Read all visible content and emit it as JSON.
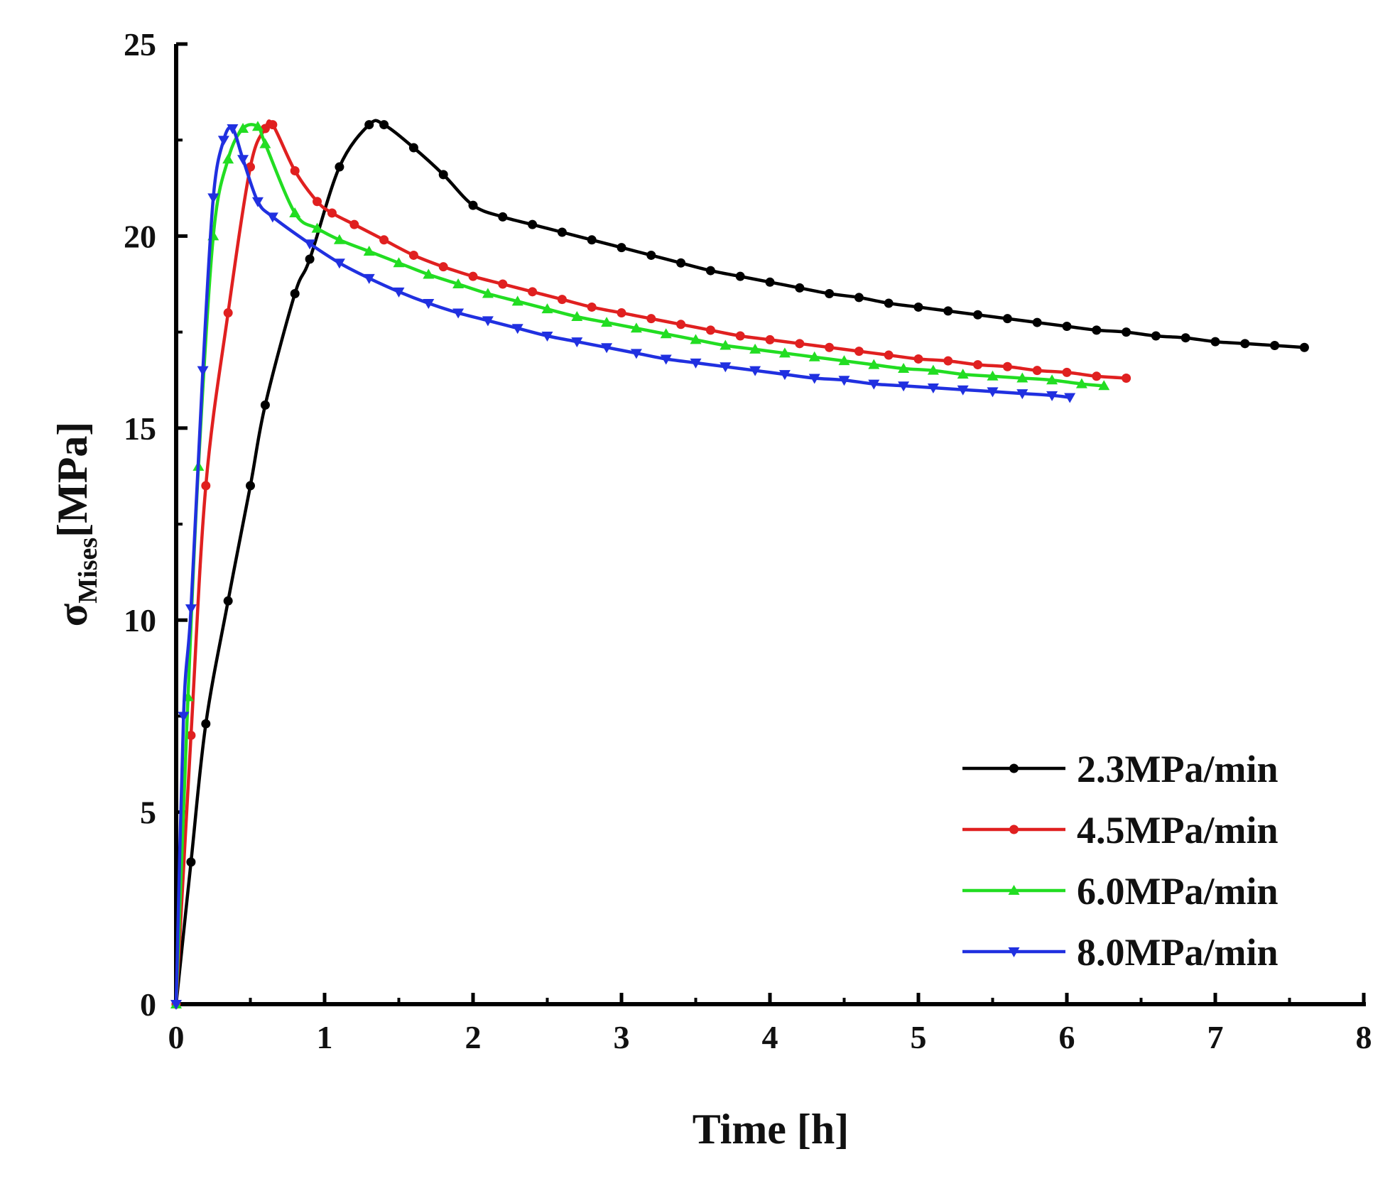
{
  "chart_data": {
    "type": "line",
    "title": "",
    "xlabel": "Time [h]",
    "ylabel": {
      "main": "σ",
      "subscript": "Mises",
      "unit": "[MPa]"
    },
    "xlim": [
      0,
      8
    ],
    "ylim": [
      0,
      25
    ],
    "xticks": [
      "0",
      "1",
      "2",
      "3",
      "4",
      "5",
      "6",
      "7",
      "8"
    ],
    "yticks": [
      "0",
      "5",
      "10",
      "15",
      "20",
      "25"
    ],
    "grid": false,
    "legend_position": "bottom-right",
    "series": [
      {
        "name": "2.3MPa/min",
        "color": "#000000",
        "marker": "circle",
        "x": [
          0,
          0.1,
          0.2,
          0.35,
          0.5,
          0.6,
          0.8,
          0.9,
          1.1,
          1.3,
          1.4,
          1.6,
          1.8,
          2.0,
          2.2,
          2.4,
          2.6,
          2.8,
          3.0,
          3.2,
          3.4,
          3.6,
          3.8,
          4.0,
          4.2,
          4.4,
          4.6,
          4.8,
          5.0,
          5.2,
          5.4,
          5.6,
          5.8,
          6.0,
          6.2,
          6.4,
          6.6,
          6.8,
          7.0,
          7.2,
          7.4,
          7.6
        ],
        "y": [
          0,
          3.7,
          7.3,
          10.5,
          13.5,
          15.6,
          18.5,
          19.4,
          21.8,
          22.9,
          22.9,
          22.3,
          21.6,
          20.8,
          20.5,
          20.3,
          20.1,
          19.9,
          19.7,
          19.5,
          19.3,
          19.1,
          18.95,
          18.8,
          18.65,
          18.5,
          18.4,
          18.25,
          18.15,
          18.05,
          17.95,
          17.85,
          17.75,
          17.65,
          17.55,
          17.5,
          17.4,
          17.35,
          17.25,
          17.2,
          17.15,
          17.1
        ]
      },
      {
        "name": "4.5MPa/min",
        "color": "#e02020",
        "marker": "circle",
        "x": [
          0,
          0.1,
          0.2,
          0.35,
          0.5,
          0.6,
          0.65,
          0.8,
          0.95,
          1.05,
          1.2,
          1.4,
          1.6,
          1.8,
          2.0,
          2.2,
          2.4,
          2.6,
          2.8,
          3.0,
          3.2,
          3.4,
          3.6,
          3.8,
          4.0,
          4.2,
          4.4,
          4.6,
          4.8,
          5.0,
          5.2,
          5.4,
          5.6,
          5.8,
          6.0,
          6.2,
          6.4
        ],
        "y": [
          0,
          7.0,
          13.5,
          18.0,
          21.8,
          22.8,
          22.9,
          21.7,
          20.9,
          20.6,
          20.3,
          19.9,
          19.5,
          19.2,
          18.95,
          18.75,
          18.55,
          18.35,
          18.15,
          18.0,
          17.85,
          17.7,
          17.55,
          17.4,
          17.3,
          17.2,
          17.1,
          17.0,
          16.9,
          16.8,
          16.75,
          16.65,
          16.6,
          16.5,
          16.45,
          16.35,
          16.3
        ]
      },
      {
        "name": "6.0MPa/min",
        "color": "#22dd22",
        "marker": "triangle-up",
        "x": [
          0,
          0.08,
          0.15,
          0.25,
          0.35,
          0.45,
          0.55,
          0.6,
          0.8,
          0.95,
          1.1,
          1.3,
          1.5,
          1.7,
          1.9,
          2.1,
          2.3,
          2.5,
          2.7,
          2.9,
          3.1,
          3.3,
          3.5,
          3.7,
          3.9,
          4.1,
          4.3,
          4.5,
          4.7,
          4.9,
          5.1,
          5.3,
          5.5,
          5.7,
          5.9,
          6.1,
          6.25
        ],
        "y": [
          0,
          8.0,
          14.0,
          20.0,
          22.0,
          22.8,
          22.85,
          22.4,
          20.6,
          20.2,
          19.9,
          19.6,
          19.3,
          19.0,
          18.75,
          18.5,
          18.3,
          18.1,
          17.9,
          17.75,
          17.6,
          17.45,
          17.3,
          17.15,
          17.05,
          16.95,
          16.85,
          16.75,
          16.65,
          16.55,
          16.5,
          16.4,
          16.35,
          16.3,
          16.25,
          16.15,
          16.1
        ]
      },
      {
        "name": "8.0MPa/min",
        "color": "#2030e0",
        "marker": "triangle-down",
        "x": [
          0,
          0.05,
          0.1,
          0.18,
          0.25,
          0.32,
          0.38,
          0.45,
          0.55,
          0.65,
          0.9,
          1.1,
          1.3,
          1.5,
          1.7,
          1.9,
          2.1,
          2.3,
          2.5,
          2.7,
          2.9,
          3.1,
          3.3,
          3.5,
          3.7,
          3.9,
          4.1,
          4.3,
          4.5,
          4.7,
          4.9,
          5.1,
          5.3,
          5.5,
          5.7,
          5.9,
          6.02
        ],
        "y": [
          0,
          7.5,
          10.3,
          16.5,
          21.0,
          22.5,
          22.8,
          22.0,
          20.9,
          20.5,
          19.8,
          19.3,
          18.9,
          18.55,
          18.25,
          18.0,
          17.8,
          17.6,
          17.4,
          17.25,
          17.1,
          16.95,
          16.8,
          16.7,
          16.6,
          16.5,
          16.4,
          16.3,
          16.25,
          16.15,
          16.1,
          16.05,
          16.0,
          15.95,
          15.9,
          15.85,
          15.8
        ]
      }
    ]
  }
}
